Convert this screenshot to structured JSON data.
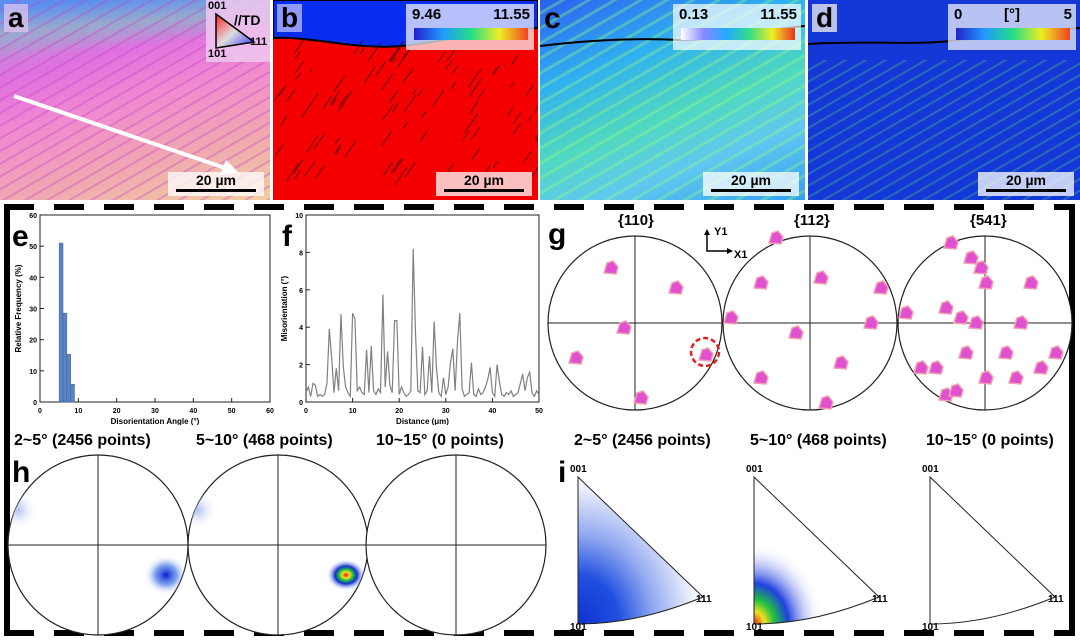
{
  "panels": {
    "a": "a",
    "b": "b",
    "c": "c",
    "d": "d",
    "e": "e",
    "f": "f",
    "g": "g",
    "h": "h",
    "i": "i"
  },
  "map_a": {
    "ipf_key": {
      "top": "001",
      "left": "101",
      "right": "111",
      "direction": "//TD"
    },
    "scale_bar": "20 µm"
  },
  "map_b": {
    "colorbar": {
      "min": "9.46",
      "max": "11.55"
    },
    "scale_bar": "20 µm"
  },
  "map_c": {
    "colorbar": {
      "min": "0.13",
      "max": "11.55"
    },
    "scale_bar": "20 µm"
  },
  "map_d": {
    "colorbar": {
      "min": "0",
      "unit": "[°]",
      "max": "5"
    },
    "scale_bar": "20 µm"
  },
  "colors": {
    "bar": "#5b84c4",
    "line": "#808080",
    "dash": "#000000",
    "highlight": "#e02020"
  },
  "chart_data": [
    {
      "type": "bar",
      "xlabel": "Disorientation Angle (°)",
      "ylabel": "Relative Frequency (%)",
      "xlim": [
        0,
        60
      ],
      "ylim": [
        0,
        60
      ],
      "xticks": [
        "0",
        "10",
        "20",
        "30",
        "40",
        "50",
        "60"
      ],
      "yticks": [
        "0",
        "10",
        "20",
        "30",
        "40",
        "50",
        "60"
      ],
      "bins": [
        [
          5,
          6
        ],
        [
          6,
          7
        ],
        [
          7,
          8
        ],
        [
          8,
          9
        ]
      ],
      "values": [
        51,
        28.5,
        15.3,
        5.7
      ]
    },
    {
      "type": "line",
      "xlabel": "Distance (μm)",
      "ylabel": "Misorientation (°)",
      "xlim": [
        0,
        50
      ],
      "ylim": [
        0,
        10
      ],
      "xticks": [
        "0",
        "10",
        "20",
        "30",
        "40",
        "50"
      ],
      "yticks": [
        "0",
        "2",
        "4",
        "6",
        "8",
        "10"
      ],
      "x_step": 0.5,
      "values": [
        0.5,
        0.8,
        0.3,
        1.0,
        0.9,
        0.3,
        0.4,
        0.3,
        0.4,
        1.0,
        3.9,
        2.4,
        0.5,
        1.8,
        0.6,
        4.7,
        1.9,
        0.8,
        0.5,
        0.3,
        4.75,
        4.45,
        0.6,
        0.8,
        0.5,
        0.4,
        2.8,
        0.5,
        3.0,
        0.6,
        0.4,
        0.7,
        0.5,
        5.75,
        0.8,
        2.7,
        0.9,
        0.5,
        4.35,
        4.35,
        0.4,
        0.8,
        0.5,
        0.3,
        0.4,
        0.6,
        8.2,
        3.7,
        0.6,
        0.5,
        2.95,
        0.4,
        0.6,
        2.45,
        0.5,
        4.3,
        1.8,
        0.5,
        0.3,
        1.3,
        0.4,
        0.8,
        2.1,
        2.85,
        0.6,
        3.2,
        4.75,
        0.7,
        0.3,
        0.4,
        0.5,
        2.1,
        0.4,
        0.3,
        0.7,
        0.4,
        0.5,
        0.8,
        1.2,
        1.85,
        0.5,
        0.3,
        2.0,
        1.1,
        0.4,
        0.3,
        0.5,
        0.4,
        0.6,
        0.3,
        0.4,
        0.5,
        1.0,
        1.5,
        0.6,
        1.3,
        1.6,
        0.5,
        0.3,
        0.6,
        0.4
      ]
    }
  ],
  "pole_figures": {
    "titles": [
      "{110}",
      "{112}",
      "{541}"
    ],
    "axis_y": "Y1",
    "axis_x": "X1"
  },
  "h_titles": [
    "2~5° (2456 points)",
    "5~10° (468 points)",
    "10~15° (0 points)"
  ],
  "i_titles": [
    "2~5° (2456 points)",
    "5~10° (468 points)",
    "10~15° (0 points)"
  ],
  "ipf_corners": {
    "top": "001",
    "bottom": "101",
    "right": "111"
  }
}
